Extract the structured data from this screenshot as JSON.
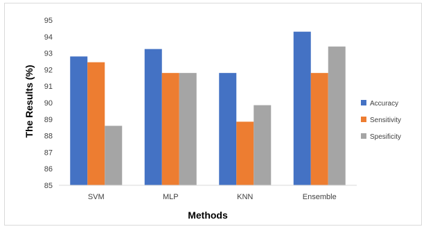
{
  "chart_data": {
    "type": "bar",
    "title": "",
    "xlabel": "Methods",
    "ylabel": "The Results (%)",
    "categories": [
      "SVM",
      "MLP",
      "KNN",
      "Ensemble"
    ],
    "series": [
      {
        "name": "Accuracy",
        "color": "#4472c4",
        "values": [
          92.8,
          93.25,
          91.8,
          94.3
        ]
      },
      {
        "name": "Sensitivity",
        "color": "#ed7d31",
        "values": [
          92.45,
          91.8,
          88.85,
          91.8
        ]
      },
      {
        "name": "Spesificity",
        "color": "#a5a5a5",
        "values": [
          88.6,
          91.8,
          89.85,
          93.4
        ]
      }
    ],
    "ylim": [
      85,
      95
    ],
    "yticks": [
      85,
      86,
      87,
      88,
      89,
      90,
      91,
      92,
      93,
      94,
      95
    ],
    "grid": false,
    "legend_position": "right"
  }
}
